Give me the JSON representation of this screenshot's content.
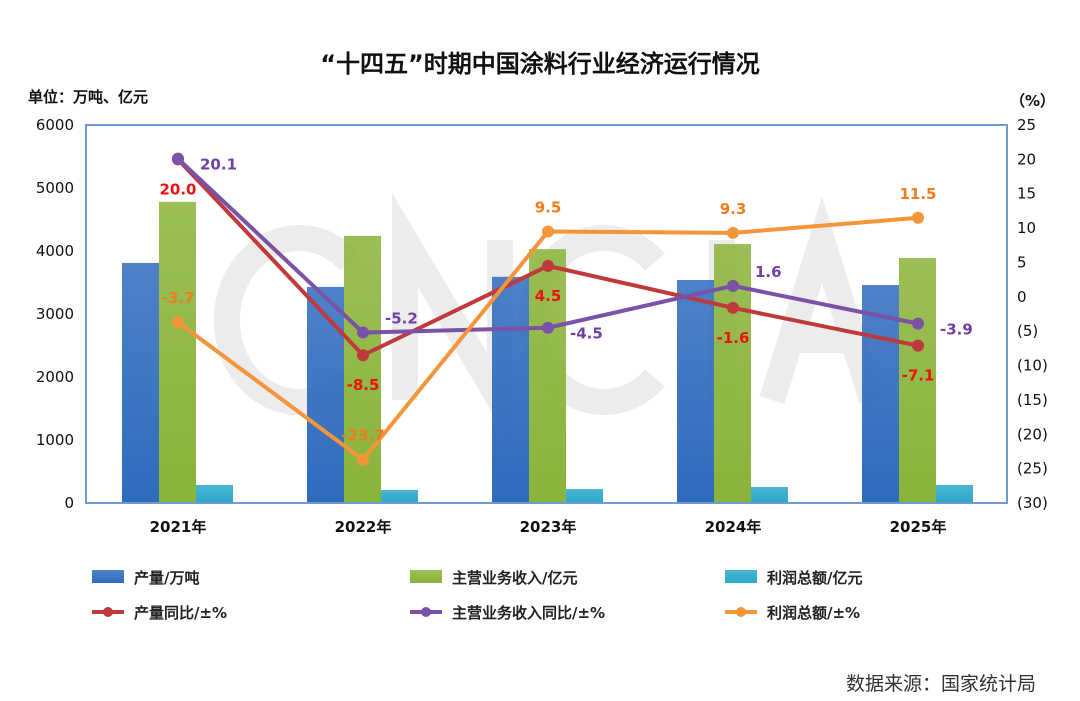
{
  "chart_data": {
    "type": "bar+line",
    "title": "“十四五”时期中国涂料行业经济运行情况",
    "left_unit_label": "单位：万吨、亿元",
    "right_unit_label": "（%）",
    "categories": [
      "2021年",
      "2022年",
      "2023年",
      "2024年",
      "2025年"
    ],
    "left_axis": {
      "range": [
        0,
        6000
      ],
      "ticks": [
        "0",
        "1000",
        "2000",
        "3000",
        "4000",
        "5000",
        "6000"
      ]
    },
    "right_axis": {
      "range": [
        -30,
        25
      ],
      "ticks": [
        "(30)",
        "(25)",
        "(20)",
        "(15)",
        "(10)",
        "(5)",
        "0",
        "5",
        "10",
        "15",
        "20",
        "25"
      ],
      "negative_color": "#e8141b"
    },
    "bar_series": [
      {
        "name": "产量/万吨",
        "color": "#2f6bbd",
        "values": [
          3810,
          3430,
          3590,
          3540,
          3460
        ]
      },
      {
        "name": "主营业务收入/亿元",
        "color": "#8ab33a",
        "values": [
          4780,
          4240,
          4030,
          4110,
          3890
        ]
      },
      {
        "name": "利润总额/亿元",
        "color": "#2aa8c8",
        "values": [
          286,
          206,
          222,
          254,
          286
        ]
      }
    ],
    "line_series": [
      {
        "name": "产量同比/±%",
        "color": "#c0393b",
        "label_color": "#ee1111",
        "values": [
          20.0,
          -8.5,
          4.5,
          -1.6,
          -7.1
        ],
        "labels": [
          "20.0",
          "-8.5",
          "4.5",
          "-1.6",
          "-7.1"
        ]
      },
      {
        "name": "主营业务收入同比/±%",
        "color": "#7b52a8",
        "label_color": "#7040a8",
        "values": [
          20.1,
          -5.2,
          -4.5,
          1.6,
          -3.9
        ],
        "labels": [
          "20.1",
          "-5.2",
          "-4.5",
          "1.6",
          "-3.9"
        ]
      },
      {
        "name": "利润总额/±%",
        "color": "#f5953a",
        "label_color": "#f07d1a",
        "values": [
          -3.7,
          -23.7,
          9.5,
          9.3,
          11.5
        ],
        "labels": [
          "-3.7",
          "-23.7",
          "9.5",
          "9.3",
          "11.5"
        ]
      }
    ],
    "watermark": "CNCIA",
    "legend_placement": "bottom",
    "grid": false
  },
  "source": "数据来源：国家统计局"
}
